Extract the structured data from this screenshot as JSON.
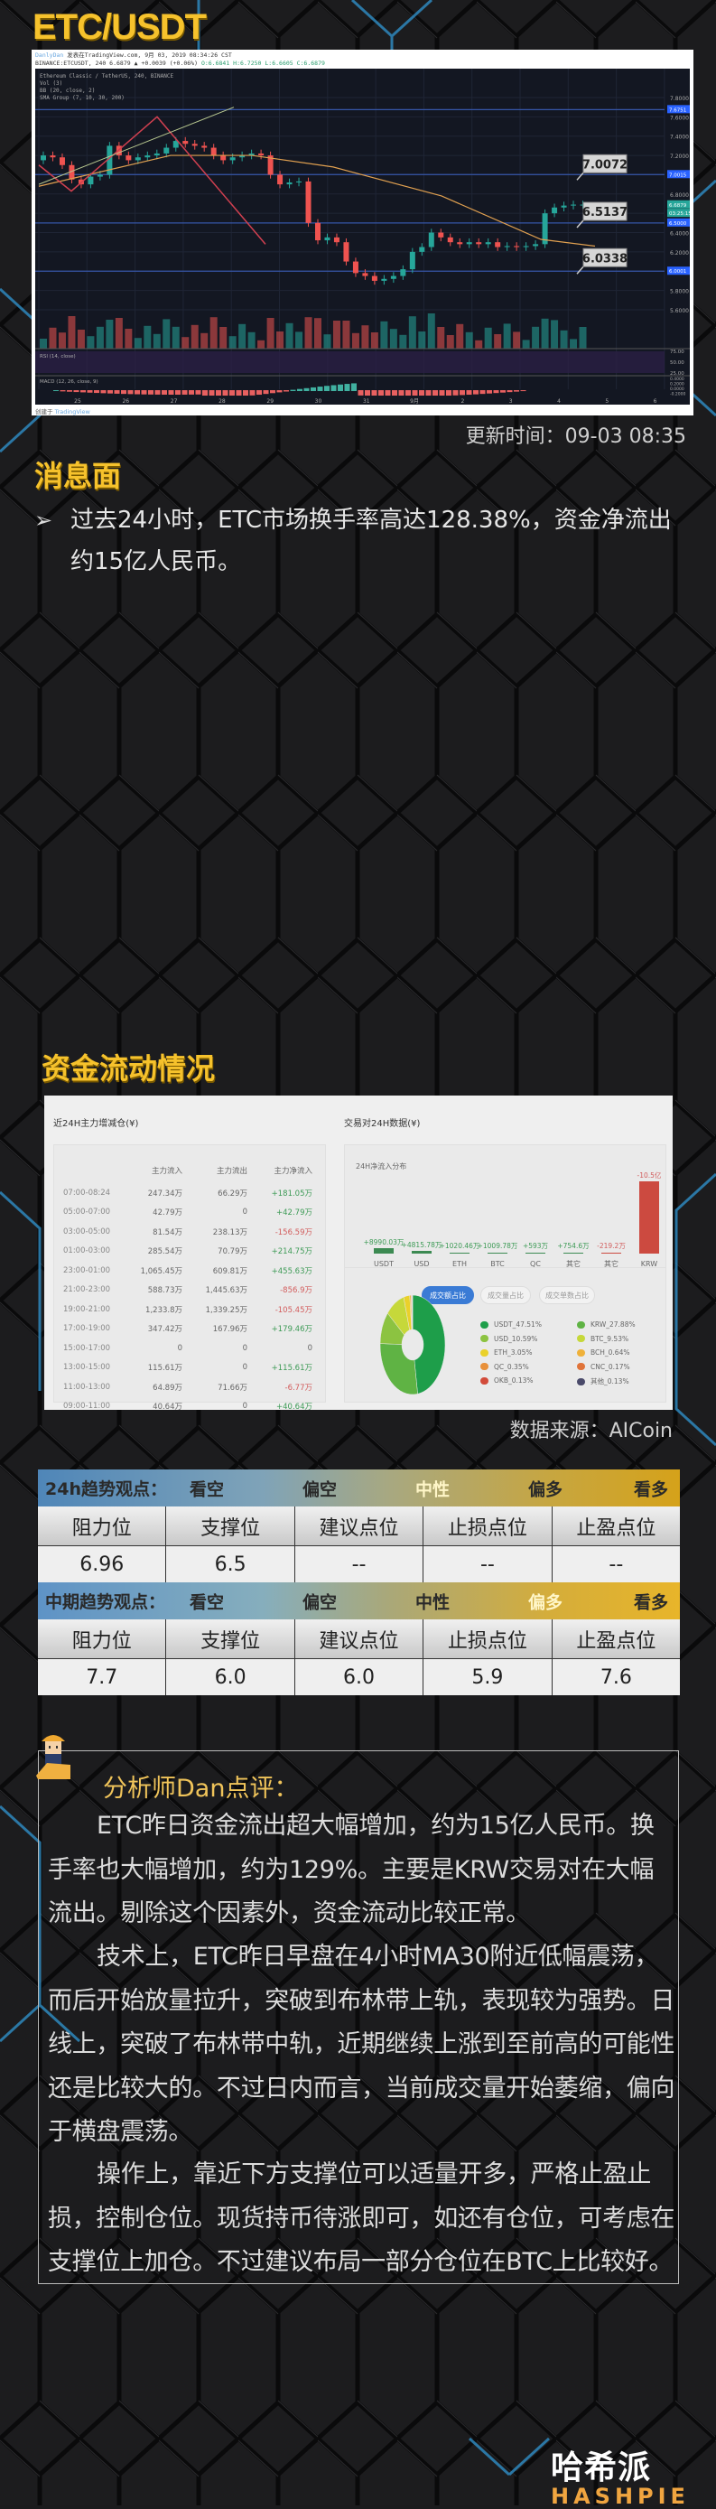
{
  "page_title": "ETC/USDT",
  "price_chart": {
    "header_line1_user": "DanlyDan",
    "header_line1_rest": "发表在TradingView.com, 9月 03, 2019 08:34:26 CST",
    "header_line2_symbol": "BINANCE:ETCUSDT, 240 6.6879 ▲ +0.0039 (+0.06%)",
    "header_line2_ohlc": "O:6.6841 H:6.7250 L:6.6605 C:6.6879",
    "legend": [
      "Ethereum Classic / TetherUS, 240, BINANCE",
      "Vol (3)",
      "BB (20, close, 2)",
      "SMA Group (7, 10, 30, 200)"
    ],
    "rsi_label": "RSI (14, close)",
    "macd_label": "MACD (12, 26, close, 9)",
    "price_ticks": [
      "7.8000",
      "7.6000",
      "7.4000",
      "7.2000",
      "6.8000",
      "6.4000",
      "6.2000",
      "5.8000",
      "5.6000"
    ],
    "price_boxes": [
      "7.6751",
      "7.0015",
      "6.6879",
      "03:25:15",
      "6.5000",
      "6.0001"
    ],
    "rsi_ticks": [
      "75.00",
      "50.00",
      "25.00"
    ],
    "macd_ticks": [
      "0.4000",
      "0.2000",
      "0.0000",
      "-0.2000"
    ],
    "x_ticks": [
      "25",
      "26",
      "27",
      "28",
      "29",
      "30",
      "31",
      "9月",
      "2",
      "3",
      "4",
      "5",
      "6"
    ],
    "callouts": [
      "7.0072",
      "6.5137",
      "6.0338"
    ],
    "footer_prefix": "创建于",
    "footer_brand": "TradingView",
    "colors": {
      "up": "#26a69a",
      "down": "#ef5350",
      "bg": "#131722"
    }
  },
  "update_time": "更新时间：09-03 08:35",
  "news": {
    "title": "消息面",
    "bullet_icon": "arrow-bullet-icon",
    "text": "过去24小时，ETC市场换手率高达128.38%，资金净流出约15亿人民币。"
  },
  "fund_flow": {
    "title": "资金流动情况",
    "left_title": "近24H主力增减仓(¥)",
    "columns": [
      "主力流入",
      "主力流出",
      "主力净流入"
    ],
    "rows": [
      [
        "07:00-08:24",
        "247.34万",
        "66.29万",
        "+181.05万"
      ],
      [
        "05:00-07:00",
        "42.79万",
        "0",
        "+42.79万"
      ],
      [
        "03:00-05:00",
        "81.54万",
        "238.13万",
        "-156.59万"
      ],
      [
        "01:00-03:00",
        "285.54万",
        "70.79万",
        "+214.75万"
      ],
      [
        "23:00-01:00",
        "1,065.45万",
        "609.81万",
        "+455.63万"
      ],
      [
        "21:00-23:00",
        "588.73万",
        "1,445.63万",
        "-856.9万"
      ],
      [
        "19:00-21:00",
        "1,233.8万",
        "1,339.25万",
        "-105.45万"
      ],
      [
        "17:00-19:00",
        "347.42万",
        "167.96万",
        "+179.46万"
      ],
      [
        "15:00-17:00",
        "0",
        "0",
        "0"
      ],
      [
        "13:00-15:00",
        "115.61万",
        "0",
        "+115.61万"
      ],
      [
        "11:00-13:00",
        "64.89万",
        "71.66万",
        "-6.77万"
      ],
      [
        "09:00-11:00",
        "40.64万",
        "0",
        "+40.64万"
      ]
    ],
    "right_title": "交易对24H数据(¥)",
    "bar_title": "24H净流入分布",
    "bars": [
      {
        "label": "+8990.03万",
        "cat": "USDT",
        "value": 8990.03
      },
      {
        "label": "+4815.78万",
        "cat": "USD",
        "value": 4815.78
      },
      {
        "label": "+1020.46万",
        "cat": "ETH",
        "value": 1020.46
      },
      {
        "label": "+1009.78万",
        "cat": "BTC",
        "value": 1009.78
      },
      {
        "label": "+593万",
        "cat": "QC",
        "value": 593
      },
      {
        "label": "+754.6万",
        "cat": "其它\n(正流入)",
        "value": 754.6
      },
      {
        "label": "-219.2万",
        "cat": "其它\n(负流入)",
        "value": -219.2
      },
      {
        "label": "-10.5亿",
        "cat": "KRW",
        "value": -105000
      }
    ],
    "tabs": [
      "成交额占比",
      "成交量占比",
      "成交单数占比"
    ],
    "active_tab": 0,
    "pie": [
      {
        "label": "USDT_47.51%",
        "value": 47.51,
        "color": "#1e9e4a"
      },
      {
        "label": "KRW_27.88%",
        "value": 27.88,
        "color": "#5fb344"
      },
      {
        "label": "USD_10.59%",
        "value": 10.59,
        "color": "#8cc341"
      },
      {
        "label": "BTC_9.53%",
        "value": 9.53,
        "color": "#c6d83a"
      },
      {
        "label": "ETH_3.05%",
        "value": 3.05,
        "color": "#ead12a"
      },
      {
        "label": "BCH_0.64%",
        "value": 0.64,
        "color": "#efb13a"
      },
      {
        "label": "QC_0.35%",
        "value": 0.35,
        "color": "#e8903a"
      },
      {
        "label": "CNC_0.17%",
        "value": 0.17,
        "color": "#e0743a"
      },
      {
        "label": "OKB_0.13%",
        "value": 0.13,
        "color": "#d24b3a"
      },
      {
        "label": "其他_0.13%",
        "value": 0.13,
        "color": "#4a4a6a"
      }
    ],
    "source": "数据来源：AICoin"
  },
  "trend": {
    "short": {
      "label": "24h趋势观点：",
      "options": [
        "看空",
        "偏空",
        "中性",
        "偏多",
        "看多"
      ],
      "selected": "中性",
      "headers": [
        "阻力位",
        "支撑位",
        "建议点位",
        "止损点位",
        "止盈点位"
      ],
      "values": [
        "6.96",
        "6.5",
        "--",
        "--",
        "--"
      ]
    },
    "mid": {
      "label": "中期趋势观点：",
      "options": [
        "看空",
        "偏空",
        "中性",
        "偏多",
        "看多"
      ],
      "selected": "偏多",
      "headers": [
        "阻力位",
        "支撑位",
        "建议点位",
        "止损点位",
        "止盈点位"
      ],
      "values": [
        "7.7",
        "6.0",
        "6.0",
        "5.9",
        "7.6"
      ]
    }
  },
  "analyst": {
    "title": "分析师Dan点评：",
    "paragraphs": [
      "ETC昨日资金流出超大幅增加，约为15亿人民币。换手率也大幅增加，约为129%。主要是KRW交易对在大幅流出。剔除这个因素外，资金流动比较正常。",
      "技术上，ETC昨日早盘在4小时MA30附近低幅震荡，而后开始放量拉升，突破到布林带上轨，表现较为强势。日线上，突破了布林带中轨，近期继续上涨到至前高的可能性还是比较大的。不过日内而言，当前成交量开始萎缩，偏向于横盘震荡。",
      "操作上，靠近下方支撑位可以适量开多，严格止盈止损，控制仓位。现货持币待涨即可，如还有仓位，可考虑在支撑位上加仓。不过建议布局一部分仓位在BTC上比较好。"
    ]
  },
  "brand": {
    "cn": "哈希派",
    "en": "HASHPIE",
    "accent": "#f6c22c"
  }
}
